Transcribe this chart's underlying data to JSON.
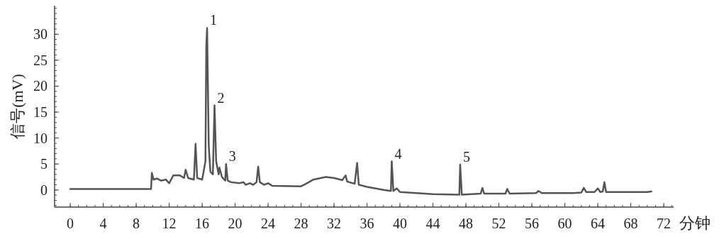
{
  "chart_data": {
    "type": "line",
    "xlabel": "分钟",
    "ylabel": "信号(mV)",
    "xlim": [
      -1.9,
      73.2
    ],
    "ylim": [
      -3.3,
      35.5
    ],
    "xticks": [
      0,
      4,
      8,
      12,
      16,
      20,
      24,
      28,
      32,
      36,
      40,
      44,
      48,
      52,
      56,
      60,
      64,
      68,
      72
    ],
    "yticks": [
      0,
      5,
      10,
      15,
      20,
      25,
      30
    ],
    "grid": false,
    "marker": "none",
    "line_style": "solid",
    "series": [
      {
        "color": "#555555",
        "x": [
          0,
          9.8,
          9.9,
          10.1,
          10.5,
          11,
          11.6,
          12,
          12.5,
          13.3,
          13.8,
          14.0,
          14.3,
          15.0,
          15.2,
          15.4,
          16.0,
          16.4,
          16.5,
          16.6,
          16.8,
          17.0,
          17.3,
          17.5,
          17.7,
          18.0,
          18.1,
          18.4,
          18.8,
          18.9,
          19.1,
          19.5,
          20.5,
          21,
          21.3,
          21.8,
          22.2,
          22.6,
          22.8,
          23,
          23.5,
          24,
          24.5,
          28,
          28.6,
          29.5,
          31,
          32,
          33,
          33.4,
          33.6,
          34.5,
          34.8,
          35,
          36,
          38,
          38.9,
          39.0,
          39.2,
          39.6,
          40,
          44,
          47.2,
          47.3,
          47.5,
          49.8,
          50.0,
          50.2,
          52.8,
          53.0,
          53.3,
          56.5,
          56.8,
          57.2,
          61,
          62.0,
          62.3,
          62.6,
          63.6,
          64.0,
          64.3,
          64.6,
          64.8,
          65.0,
          67.5,
          70,
          70.5
        ],
        "values": [
          0.2,
          0.2,
          3.3,
          2.0,
          2.2,
          1.8,
          2.0,
          1.3,
          2.8,
          2.8,
          2.3,
          3.9,
          2.3,
          2.0,
          8.9,
          2.3,
          2.0,
          5.5,
          27.5,
          31.2,
          8.5,
          3.5,
          3.0,
          16.3,
          5.5,
          3.0,
          4.3,
          2.5,
          1.8,
          5.0,
          1.8,
          1.5,
          1.3,
          1.5,
          1.0,
          1.3,
          1.0,
          1.5,
          4.5,
          1.5,
          1.0,
          1.3,
          0.8,
          0.7,
          1.2,
          2.0,
          2.5,
          2.3,
          1.9,
          2.8,
          1.6,
          1.2,
          5.2,
          1.0,
          0.6,
          0.0,
          -0.2,
          5.5,
          -0.2,
          0.3,
          -0.4,
          -0.8,
          -0.9,
          4.9,
          -0.9,
          -0.7,
          0.4,
          -0.7,
          -0.7,
          0.2,
          -0.7,
          -0.6,
          -0.2,
          -0.6,
          -0.6,
          -0.5,
          0.4,
          -0.4,
          -0.4,
          0.3,
          -0.4,
          -0.3,
          1.5,
          -0.4,
          -0.4,
          -0.4,
          -0.3
        ]
      }
    ],
    "annotations": [
      {
        "text": "1",
        "x": 16.6,
        "y": 31.2
      },
      {
        "text": "2",
        "x": 17.5,
        "y": 16.3
      },
      {
        "text": "3",
        "x": 18.9,
        "y": 5.0
      },
      {
        "text": "4",
        "x": 39.0,
        "y": 5.5
      },
      {
        "text": "5",
        "x": 47.3,
        "y": 4.9
      }
    ]
  }
}
